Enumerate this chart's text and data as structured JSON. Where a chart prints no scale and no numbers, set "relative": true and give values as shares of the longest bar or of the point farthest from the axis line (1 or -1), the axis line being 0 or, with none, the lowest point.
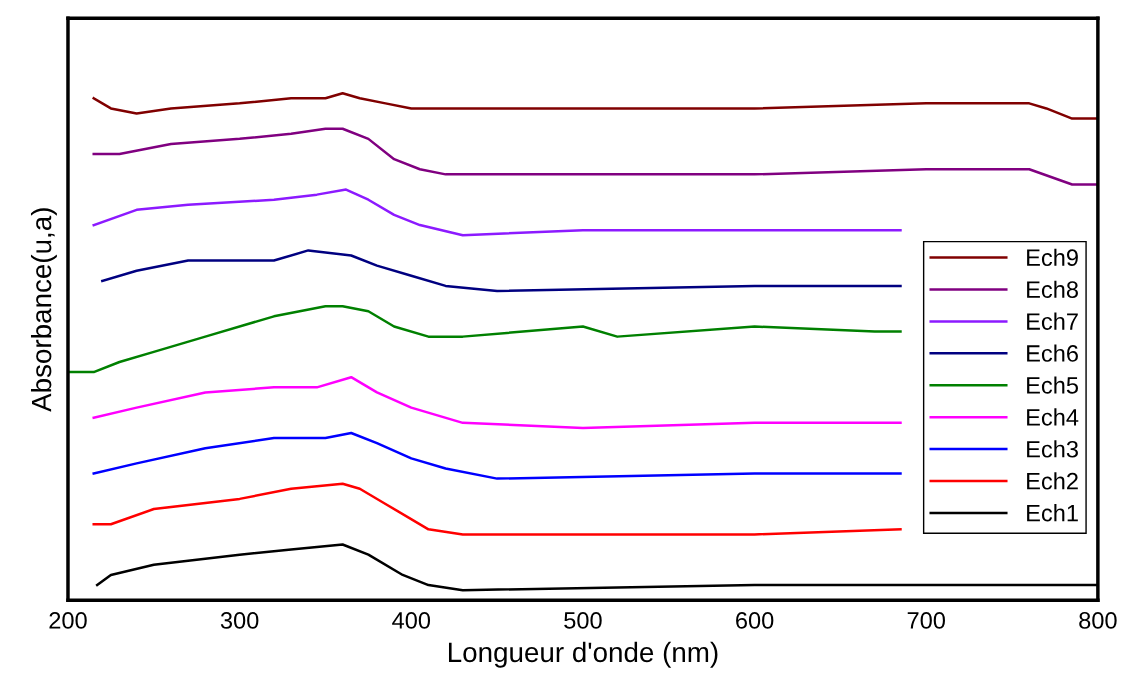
{
  "chart_data": {
    "type": "line",
    "relative": true,
    "xlabel": "Longueur d'onde (nm)",
    "ylabel": "Absorbance(u,a)",
    "xlim": [
      200,
      800
    ],
    "xticks": [
      200,
      300,
      400,
      500,
      600,
      700,
      800
    ],
    "grid": false,
    "legend": "right",
    "tick_labels": "x",
    "line_style": "solid",
    "marker": "none",
    "series": [
      {
        "name": "Ech9",
        "color": "#800000",
        "x": [
          215,
          225,
          240,
          260,
          300,
          330,
          350,
          360,
          370,
          385,
          400,
          450,
          500,
          600,
          700,
          760,
          770,
          785,
          800
        ],
        "values": [
          0.99,
          0.97,
          0.96,
          0.97,
          0.98,
          0.99,
          0.99,
          1.0,
          0.99,
          0.98,
          0.97,
          0.97,
          0.97,
          0.97,
          0.98,
          0.98,
          0.97,
          0.95,
          0.95
        ]
      },
      {
        "name": "Ech8",
        "color": "#800080",
        "x": [
          215,
          230,
          260,
          300,
          330,
          350,
          360,
          375,
          390,
          405,
          420,
          450,
          600,
          700,
          760,
          785,
          800
        ],
        "values": [
          0.88,
          0.88,
          0.9,
          0.91,
          0.92,
          0.93,
          0.93,
          0.91,
          0.87,
          0.85,
          0.84,
          0.84,
          0.84,
          0.85,
          0.85,
          0.82,
          0.82
        ]
      },
      {
        "name": "Ech7",
        "color": "#8c1aff",
        "x": [
          215,
          240,
          270,
          320,
          345,
          362,
          375,
          390,
          405,
          430,
          500,
          600,
          685
        ],
        "values": [
          0.74,
          0.77,
          0.78,
          0.79,
          0.8,
          0.81,
          0.79,
          0.76,
          0.74,
          0.72,
          0.73,
          0.73,
          0.73
        ]
      },
      {
        "name": "Ech6",
        "color": "#000080",
        "x": [
          220,
          240,
          270,
          310,
          320,
          340,
          365,
          380,
          400,
          420,
          450,
          600,
          685
        ],
        "values": [
          0.63,
          0.65,
          0.67,
          0.67,
          0.67,
          0.69,
          0.68,
          0.66,
          0.64,
          0.62,
          0.61,
          0.62,
          0.62
        ]
      },
      {
        "name": "Ech5",
        "color": "#008000",
        "x": [
          200,
          215,
          230,
          250,
          280,
          320,
          350,
          360,
          375,
          390,
          410,
          430,
          500,
          520,
          600,
          670,
          685
        ],
        "values": [
          0.45,
          0.45,
          0.47,
          0.49,
          0.52,
          0.56,
          0.58,
          0.58,
          0.57,
          0.54,
          0.52,
          0.52,
          0.54,
          0.52,
          0.54,
          0.53,
          0.53
        ]
      },
      {
        "name": "Ech4",
        "color": "#ff00ff",
        "x": [
          215,
          240,
          280,
          320,
          345,
          365,
          380,
          400,
          430,
          500,
          600,
          685
        ],
        "values": [
          0.36,
          0.38,
          0.41,
          0.42,
          0.42,
          0.44,
          0.41,
          0.38,
          0.35,
          0.34,
          0.35,
          0.35
        ]
      },
      {
        "name": "Ech3",
        "color": "#0000ff",
        "x": [
          215,
          240,
          280,
          320,
          350,
          365,
          380,
          400,
          420,
          450,
          600,
          685
        ],
        "values": [
          0.25,
          0.27,
          0.3,
          0.32,
          0.32,
          0.33,
          0.31,
          0.28,
          0.26,
          0.24,
          0.25,
          0.25
        ]
      },
      {
        "name": "Ech2",
        "color": "#ff0000",
        "x": [
          215,
          225,
          250,
          300,
          330,
          360,
          370,
          385,
          410,
          430,
          500,
          600,
          685
        ],
        "values": [
          0.15,
          0.15,
          0.18,
          0.2,
          0.22,
          0.23,
          0.22,
          0.19,
          0.14,
          0.13,
          0.13,
          0.13,
          0.14
        ]
      },
      {
        "name": "Ech1",
        "color": "#000000",
        "x": [
          217,
          225,
          250,
          300,
          330,
          360,
          375,
          395,
          410,
          430,
          600,
          800
        ],
        "values": [
          0.03,
          0.05,
          0.07,
          0.09,
          0.1,
          0.11,
          0.09,
          0.05,
          0.03,
          0.02,
          0.03,
          0.03
        ]
      }
    ]
  }
}
